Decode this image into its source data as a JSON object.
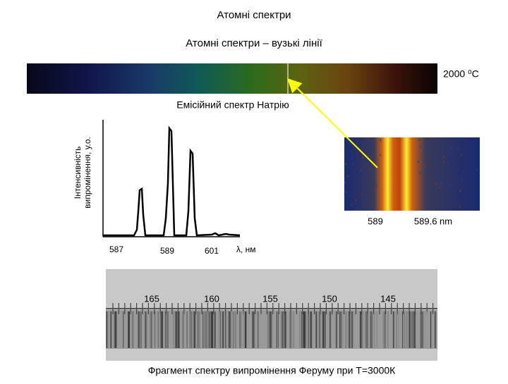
{
  "title": "Атомні спектри",
  "subtitle": "Атомні спектри – вузькі лінії",
  "spectrum": {
    "temperature": "2000 ⁰C"
  },
  "emission": {
    "title": "Емісійний спектр Натрію",
    "y_label": [
      "Інтенсивність",
      "випромінення, у.о."
    ],
    "x_labels": [
      "587",
      "589",
      "601"
    ],
    "x_unit": "λ, нм"
  },
  "photo": {
    "labels": [
      "589",
      "589.6 nm"
    ]
  },
  "ruler": {
    "labels": [
      "165",
      "160",
      "155",
      "150",
      "145"
    ],
    "caption": "Фрагмент спектру випромінення Феруму при Т=3000К"
  }
}
